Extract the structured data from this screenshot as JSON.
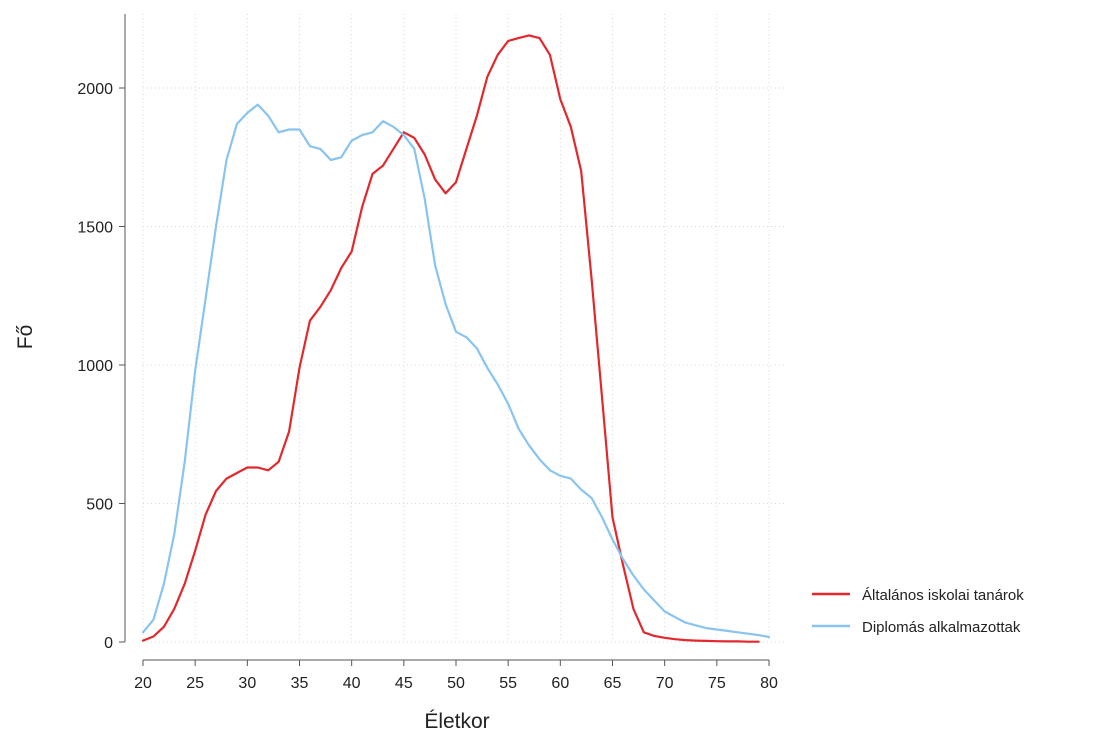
{
  "chart_data": {
    "type": "line",
    "xlabel": "Életkor",
    "ylabel": "Fő",
    "xlim": [
      20,
      80
    ],
    "ylim": [
      0,
      2200
    ],
    "x_ticks": [
      "20",
      "25",
      "30",
      "35",
      "40",
      "45",
      "50",
      "55",
      "60",
      "65",
      "70",
      "75",
      "80"
    ],
    "y_ticks": [
      "0",
      "500",
      "1000",
      "1500",
      "2000"
    ],
    "grid": true,
    "legend_position": "right",
    "series": [
      {
        "name": "Általános iskolai tanárok",
        "color": "#e2282d",
        "x": [
          20,
          21,
          22,
          23,
          24,
          25,
          26,
          27,
          28,
          29,
          30,
          31,
          32,
          33,
          34,
          35,
          36,
          37,
          38,
          39,
          40,
          41,
          42,
          43,
          44,
          45,
          46,
          47,
          48,
          49,
          50,
          51,
          52,
          53,
          54,
          55,
          56,
          57,
          58,
          59,
          60,
          61,
          62,
          63,
          64,
          65,
          66,
          67,
          68,
          69,
          70,
          71,
          72,
          73,
          74,
          75,
          76,
          77,
          78,
          79
        ],
        "values": [
          5,
          20,
          55,
          120,
          210,
          330,
          460,
          545,
          590,
          610,
          630,
          630,
          620,
          650,
          760,
          990,
          1160,
          1210,
          1270,
          1350,
          1410,
          1570,
          1690,
          1720,
          1780,
          1840,
          1820,
          1760,
          1670,
          1620,
          1660,
          1780,
          1900,
          2040,
          2120,
          2170,
          2180,
          2190,
          2180,
          2120,
          1960,
          1860,
          1700,
          1310,
          880,
          450,
          280,
          120,
          35,
          22,
          15,
          10,
          7,
          5,
          4,
          3,
          2,
          2,
          1,
          1
        ]
      },
      {
        "name": "Diplomás alkalmazottak",
        "color": "#89c4f0",
        "x": [
          20,
          21,
          22,
          23,
          24,
          25,
          26,
          27,
          28,
          29,
          30,
          31,
          32,
          33,
          34,
          35,
          36,
          37,
          38,
          39,
          40,
          41,
          42,
          43,
          44,
          45,
          46,
          47,
          48,
          49,
          50,
          51,
          52,
          53,
          54,
          55,
          56,
          57,
          58,
          59,
          60,
          61,
          62,
          63,
          64,
          65,
          66,
          67,
          68,
          69,
          70,
          71,
          72,
          73,
          74,
          75,
          76,
          77,
          78,
          79,
          80
        ],
        "values": [
          35,
          80,
          210,
          390,
          650,
          980,
          1240,
          1500,
          1740,
          1870,
          1910,
          1940,
          1900,
          1840,
          1850,
          1850,
          1790,
          1780,
          1740,
          1750,
          1810,
          1830,
          1840,
          1880,
          1860,
          1830,
          1780,
          1600,
          1360,
          1220,
          1120,
          1100,
          1060,
          990,
          930,
          860,
          770,
          710,
          660,
          620,
          600,
          590,
          550,
          520,
          450,
          370,
          300,
          240,
          190,
          150,
          110,
          90,
          70,
          60,
          50,
          45,
          40,
          35,
          30,
          25,
          18
        ]
      }
    ]
  }
}
